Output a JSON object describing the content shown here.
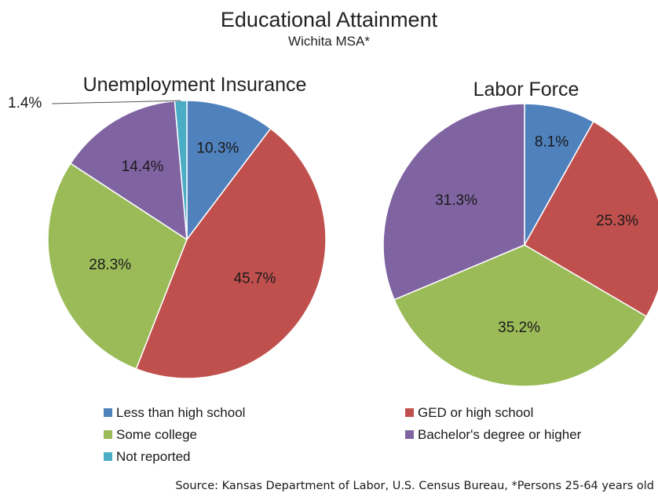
{
  "chart_data": {
    "type": "pie",
    "title": "Educational Attainment",
    "subtitle": "Wichita MSA*",
    "source": "Source:  Kansas Department of Labor, U.S. Census Bureau, *Persons 25-64 years old",
    "legend_placement": "bottom",
    "legend": [
      {
        "name": "Less than high school",
        "color": "#4f81bd"
      },
      {
        "name": "GED or high school",
        "color": "#c0504d"
      },
      {
        "name": "Some college",
        "color": "#9bbb59"
      },
      {
        "name": "Bachelor's degree or higher",
        "color": "#8064a2"
      },
      {
        "name": "Not reported",
        "color": "#4bacc6"
      }
    ],
    "pies": [
      {
        "title": "Unemployment Insurance",
        "slices": [
          {
            "name": "Less than high school",
            "value": 10.3,
            "label": "10.3%",
            "color": "#4f81bd"
          },
          {
            "name": "GED or high school",
            "value": 45.7,
            "label": "45.7%",
            "color": "#c0504d"
          },
          {
            "name": "Some college",
            "value": 28.3,
            "label": "28.3%",
            "color": "#9bbb59"
          },
          {
            "name": "Bachelor's degree or higher",
            "value": 14.4,
            "label": "14.4%",
            "color": "#8064a2"
          },
          {
            "name": "Not reported",
            "value": 1.4,
            "label": "1.4%",
            "color": "#4bacc6"
          }
        ]
      },
      {
        "title": "Labor Force",
        "slices": [
          {
            "name": "Less than high school",
            "value": 8.1,
            "label": "8.1%",
            "color": "#4f81bd"
          },
          {
            "name": "GED or high school",
            "value": 25.3,
            "label": "25.3%",
            "color": "#c0504d"
          },
          {
            "name": "Some college",
            "value": 35.2,
            "label": "35.2%",
            "color": "#9bbb59"
          },
          {
            "name": "Bachelor's degree or higher",
            "value": 31.3,
            "label": "31.3%",
            "color": "#8064a2"
          }
        ]
      }
    ]
  }
}
